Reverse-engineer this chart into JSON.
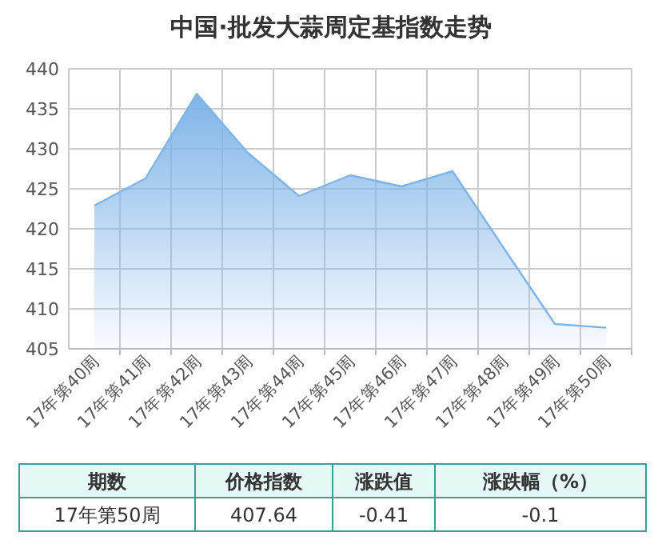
{
  "chart_data": {
    "type": "area",
    "title": "中国·批发大蒜周定基指数走势",
    "categories": [
      "17年第40周",
      "17年第41周",
      "17年第42周",
      "17年第43周",
      "17年第44周",
      "17年第45周",
      "17年第46周",
      "17年第47周",
      "17年第48周",
      "17年第49周",
      "17年第50周"
    ],
    "values": [
      422.9,
      426.3,
      436.9,
      429.5,
      424.1,
      426.7,
      425.3,
      427.2,
      417.6,
      408.1,
      407.64
    ],
    "color": "#7eb4e8",
    "ylim": [
      405,
      440
    ],
    "yticks": [
      405,
      410,
      415,
      420,
      425,
      430,
      435,
      440
    ],
    "grid": true,
    "annotations": [
      "期数",
      "价格指数",
      "涨跌值",
      "涨跌幅（%）",
      "17年第50周",
      "407.64",
      "-0.41",
      "-0.1"
    ]
  }
}
